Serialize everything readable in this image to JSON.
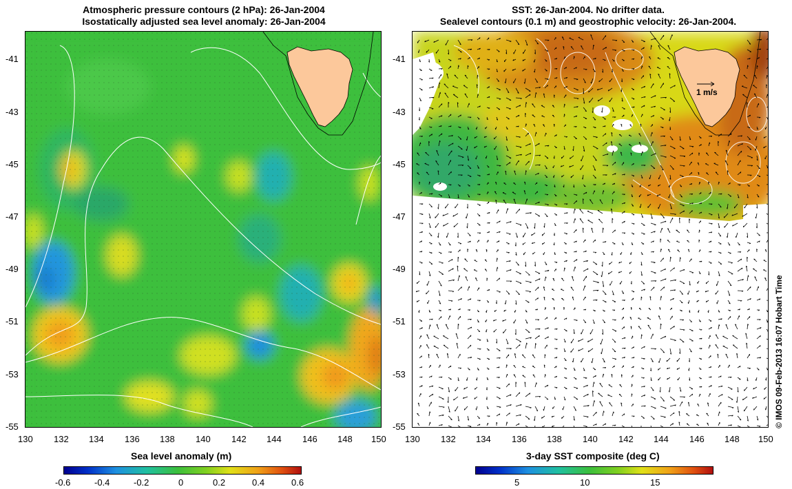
{
  "left_panel": {
    "title_line1": "Atmospheric pressure contours (2 hPa): 26-Jan-2004",
    "title_line2": "Isostatically adjusted sea level anomaly: 26-Jan-2004",
    "colorbar_title": "Sea level anomaly (m)",
    "colorbar_ticks": [
      "-0.6",
      "-0.4",
      "-0.2",
      "0",
      "0.2",
      "0.4",
      "0.6"
    ]
  },
  "right_panel": {
    "title_line1": "SST: 26-Jan-2004. No drifter data.",
    "title_line2": "Sealevel contours (0.1 m) and geostrophic velocity: 26-Jan-2004.",
    "colorbar_title": "3-day SST composite (deg C)",
    "colorbar_ticks": [
      "5",
      "10",
      "15"
    ],
    "velocity_scale_label": "1 m/s"
  },
  "axes": {
    "lat_ticks": [
      "-41",
      "-43",
      "-45",
      "-47",
      "-49",
      "-51",
      "-53",
      "-55"
    ],
    "lon_ticks": [
      "130",
      "132",
      "134",
      "136",
      "138",
      "140",
      "142",
      "144",
      "146",
      "148",
      "150"
    ]
  },
  "copyright": "© IMOS 09-Feb-2013 16:07 Hobart Time",
  "colors": {
    "land": "#fcc89b",
    "ocean_green": "#3cc23c",
    "warm_orange": "#e87a10",
    "cold_blue": "#1e9fe0"
  }
}
